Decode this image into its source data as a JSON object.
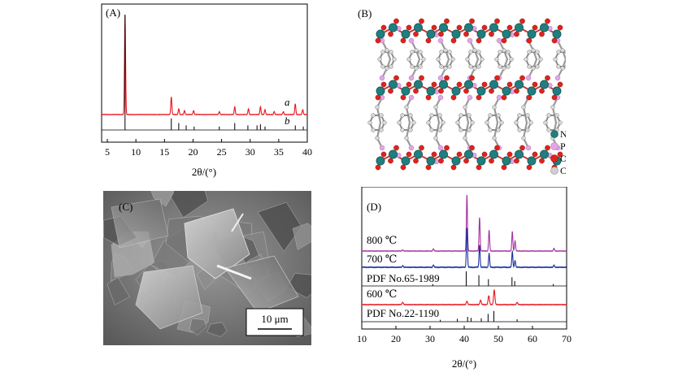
{
  "panels": {
    "A": {
      "label": "(A)",
      "xlabel": "2θ/(°)",
      "trace_a_label": "a",
      "trace_b_label": "b",
      "colors": {
        "a": "#e8141c",
        "b": "#000000"
      }
    },
    "B": {
      "label": "(B)",
      "legend": [
        {
          "text": "Ni",
          "color": "#1f7f7f"
        },
        {
          "text": "P",
          "color": "#e2a6e6"
        },
        {
          "text": "O",
          "color": "#e1221c"
        },
        {
          "text": "C",
          "color": "#c8c8c8"
        }
      ]
    },
    "C": {
      "label": "(C)",
      "scale_bar": "10 μm"
    },
    "D": {
      "label": "(D)",
      "xlabel": "2θ/(°)",
      "traces": {
        "t800": {
          "label": "800 ℃",
          "color": "#a5339f"
        },
        "t700": {
          "label": "700 ℃",
          "color": "#1b2f9b"
        },
        "t600": {
          "label": "600 ℃",
          "color": "#e8141c"
        }
      },
      "pdf1": "PDF No.65-1989",
      "pdf2": "PDF No.22-1190"
    }
  },
  "chart_data": [
    {
      "type": "line",
      "panel": "A",
      "xlabel": "2θ/(°)",
      "xlim": [
        4,
        40
      ],
      "xticks": [
        5,
        10,
        15,
        20,
        25,
        30,
        35,
        40
      ],
      "series": [
        {
          "name": "a",
          "peaks": [
            [
              8.1,
              100
            ],
            [
              16.2,
              18
            ],
            [
              17.5,
              6
            ],
            [
              18.5,
              4
            ],
            [
              20.1,
              4
            ],
            [
              24.6,
              3
            ],
            [
              27.3,
              8
            ],
            [
              29.7,
              6
            ],
            [
              31.8,
              8
            ],
            [
              32.6,
              5
            ],
            [
              34.2,
              3
            ],
            [
              35.8,
              3
            ],
            [
              37.9,
              11
            ],
            [
              39.2,
              5
            ]
          ]
        },
        {
          "name": "b",
          "sticks": [
            [
              8.1,
              100
            ],
            [
              16.2,
              10
            ],
            [
              17.5,
              6
            ],
            [
              18.8,
              4
            ],
            [
              20.2,
              3
            ],
            [
              24.6,
              3
            ],
            [
              27.3,
              6
            ],
            [
              29.6,
              4
            ],
            [
              31.2,
              4
            ],
            [
              31.8,
              5
            ],
            [
              32.6,
              3
            ],
            [
              37.9,
              4
            ],
            [
              39.3,
              3
            ]
          ]
        }
      ]
    },
    {
      "type": "line",
      "panel": "D",
      "xlabel": "2θ/(°)",
      "xlim": [
        10,
        70
      ],
      "xticks": [
        10,
        20,
        30,
        40,
        50,
        60,
        70
      ],
      "series": [
        {
          "name": "800 ℃",
          "peaks": [
            [
              31,
              4
            ],
            [
              40.8,
              100
            ],
            [
              44.5,
              60
            ],
            [
              47.3,
              37
            ],
            [
              54.1,
              35
            ],
            [
              54.9,
              18
            ],
            [
              66.3,
              5
            ]
          ]
        },
        {
          "name": "700 ℃",
          "peaks": [
            [
              31,
              4
            ],
            [
              40.8,
              70
            ],
            [
              44.5,
              40
            ],
            [
              47.3,
              25
            ],
            [
              54.1,
              28
            ],
            [
              54.9,
              12
            ],
            [
              66.3,
              4
            ]
          ]
        },
        {
          "name": "PDF No.65-1989",
          "sticks": [
            [
              30.8,
              4
            ],
            [
              40.6,
              30
            ],
            [
              44.3,
              22
            ],
            [
              47.1,
              14
            ],
            [
              54.0,
              18
            ],
            [
              54.8,
              10
            ],
            [
              66.1,
              4
            ]
          ]
        },
        {
          "name": "600 ℃",
          "peaks": [
            [
              40.8,
              6
            ],
            [
              44.8,
              8
            ],
            [
              47.2,
              16
            ],
            [
              48.8,
              26
            ],
            [
              55.5,
              4
            ]
          ]
        },
        {
          "name": "PDF No.22-1190",
          "sticks": [
            [
              33,
              4
            ],
            [
              38,
              6
            ],
            [
              41,
              10
            ],
            [
              42,
              8
            ],
            [
              45,
              7
            ],
            [
              47,
              16
            ],
            [
              48.7,
              22
            ],
            [
              55.5,
              5
            ]
          ]
        }
      ]
    }
  ]
}
